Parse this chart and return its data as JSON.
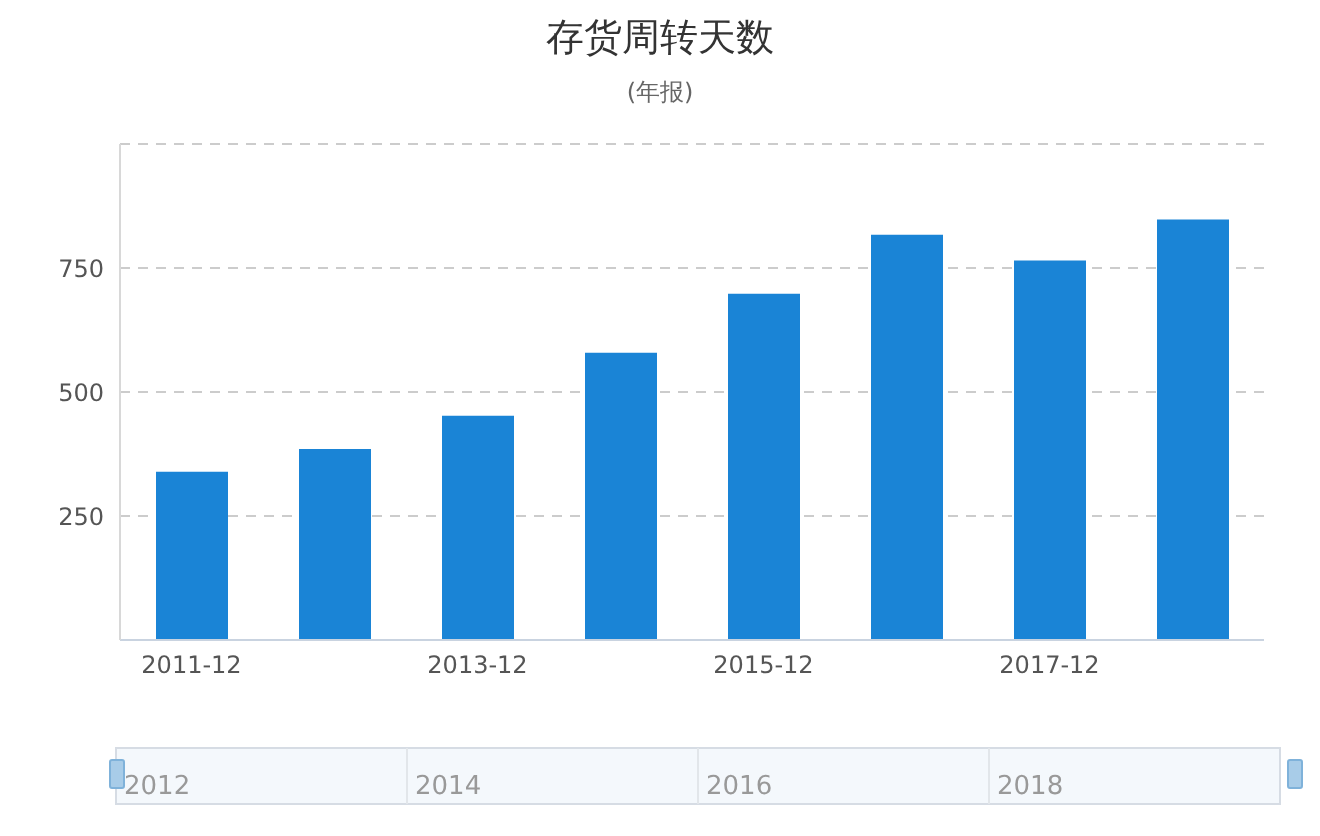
{
  "chart_data": {
    "type": "bar",
    "title": "存货周转天数",
    "subtitle": "(年报)",
    "categories": [
      "2011-12",
      null,
      "2013-12",
      null,
      "2015-12",
      null,
      "2017-12",
      null
    ],
    "values": [
      339,
      385,
      452,
      579,
      698,
      817,
      765,
      848
    ],
    "color": "#1a84d6",
    "ylim": [
      0,
      1000
    ],
    "yticks": [
      250,
      500,
      750,
      {
        "value": 1000,
        "label": null
      }
    ],
    "grid": "y",
    "annotations": [
      "2012",
      "2014",
      "2016",
      "2018"
    ]
  }
}
